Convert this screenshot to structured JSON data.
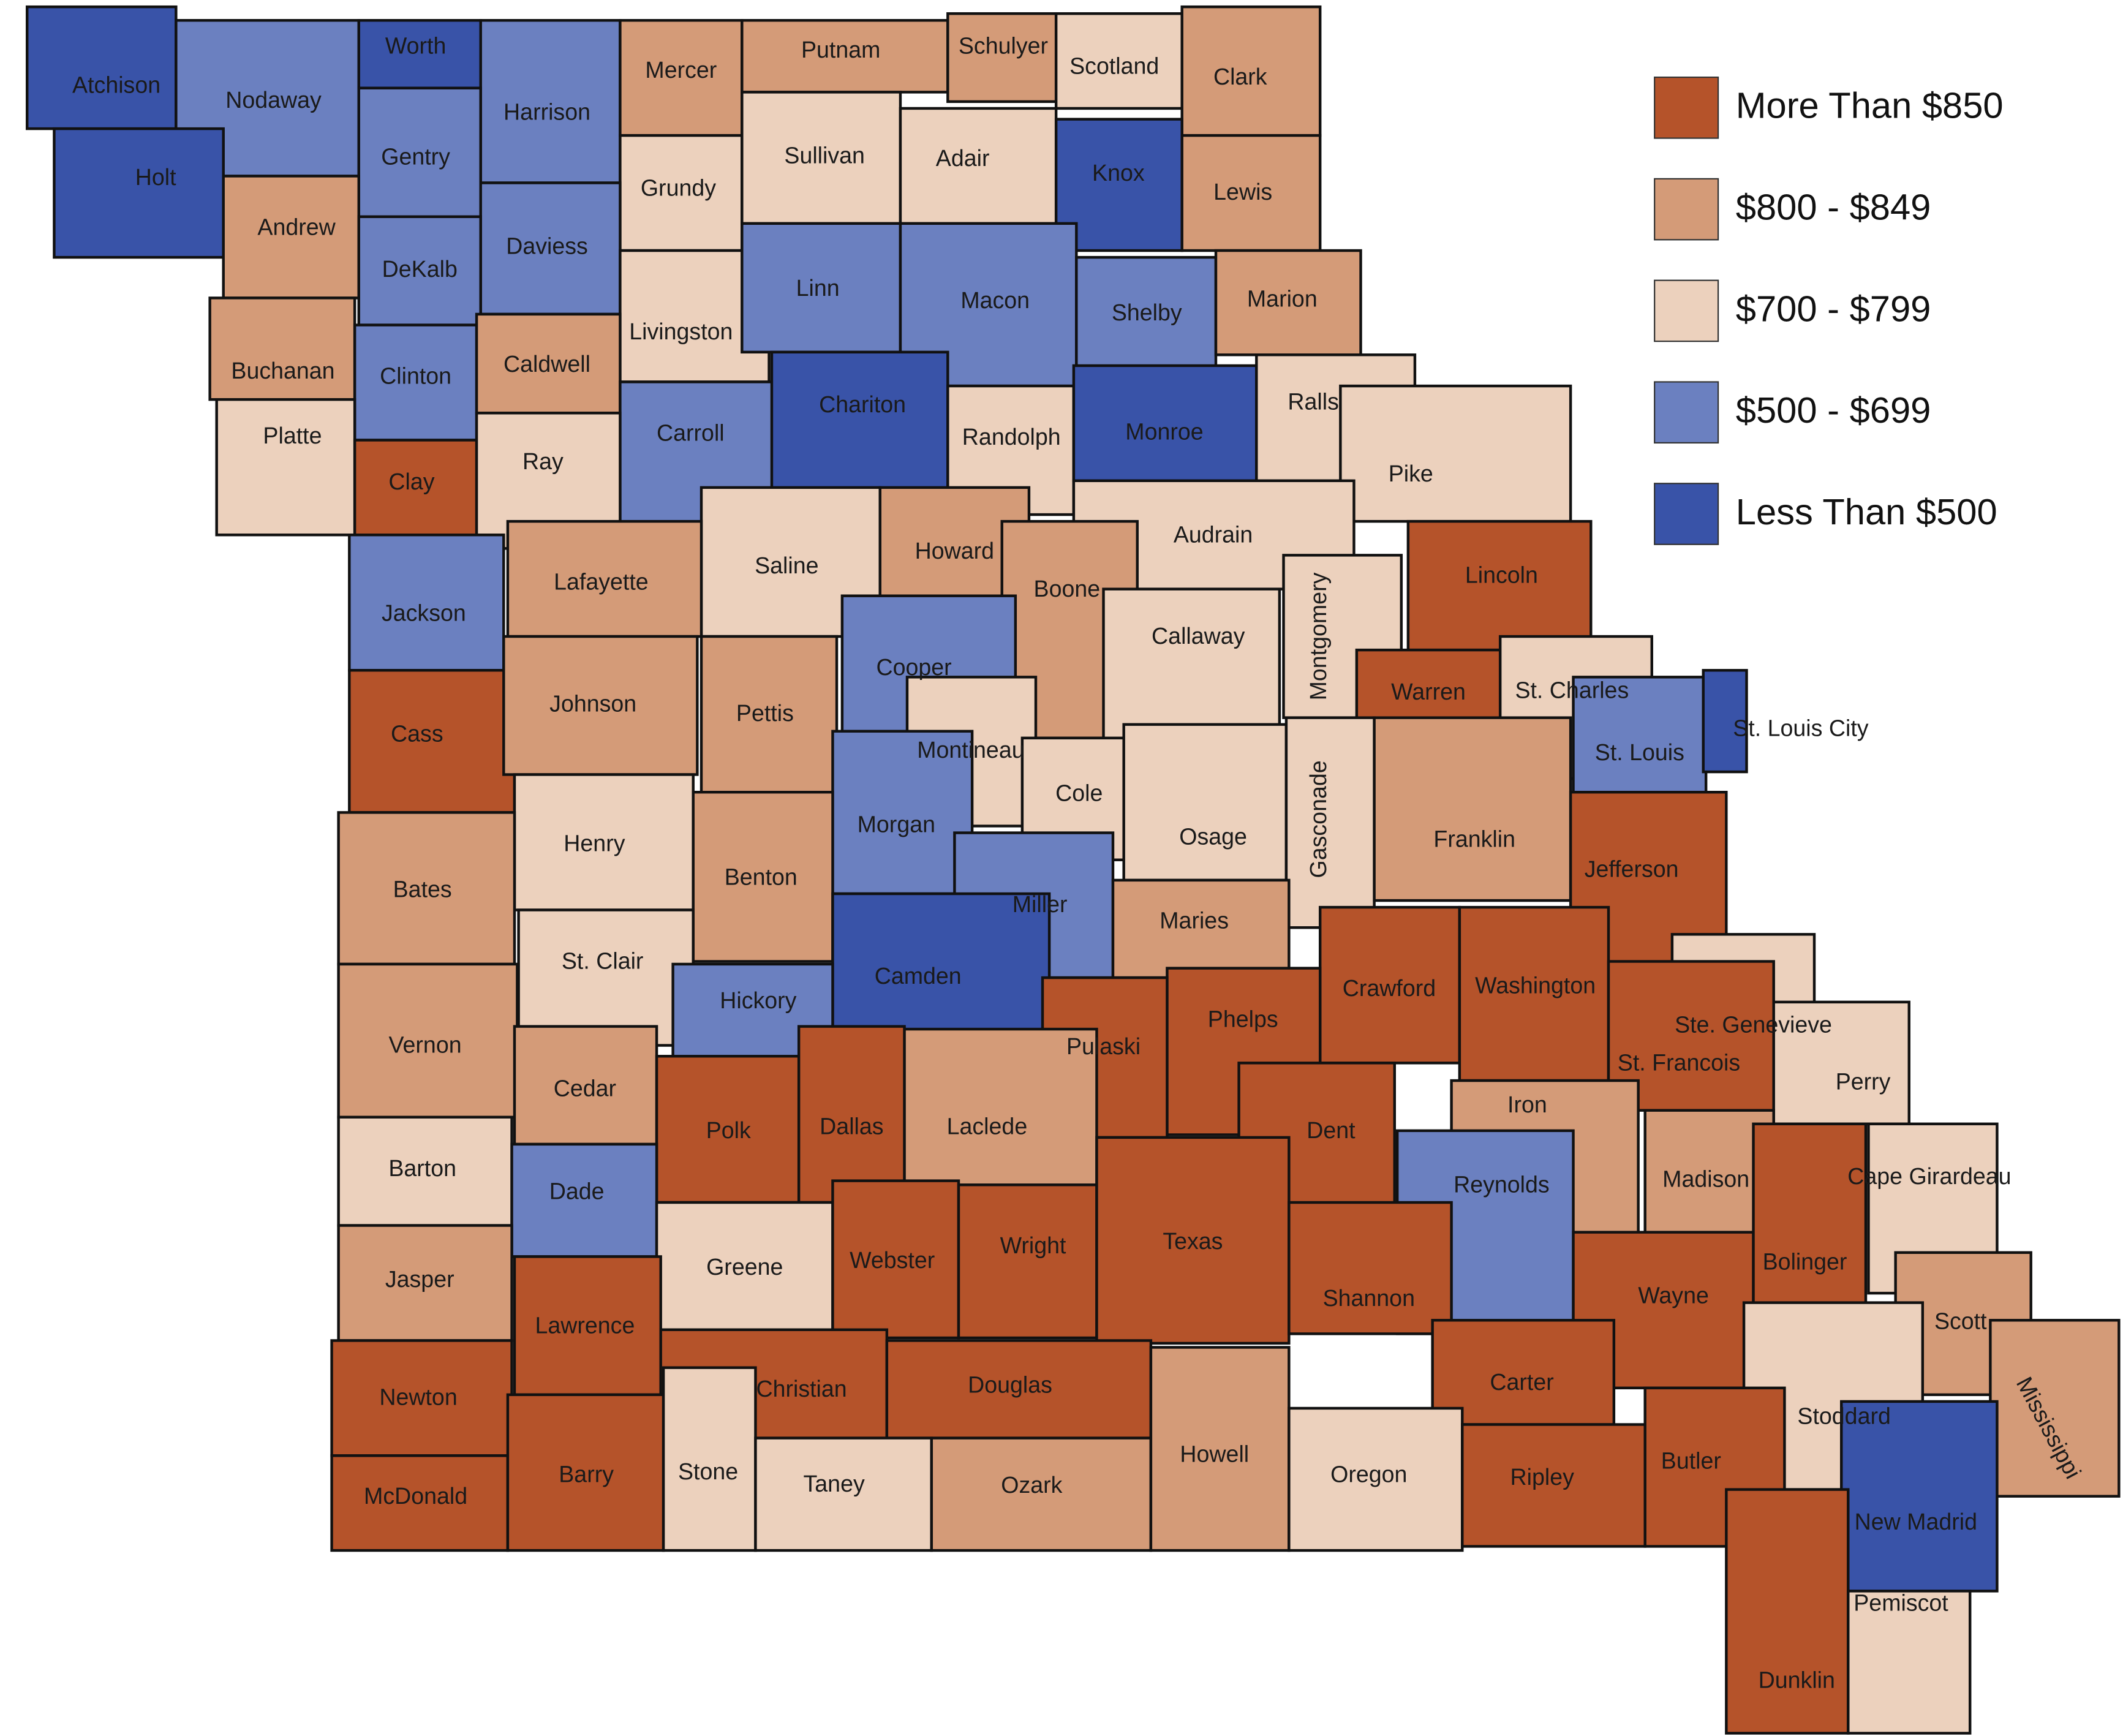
{
  "map": {
    "legend": [
      {
        "label": "More Than $850",
        "color": "#b5532a"
      },
      {
        "label": "$800 - $849",
        "color": "#d49b78"
      },
      {
        "label": "$700 - $799",
        "color": "#ecd1bd"
      },
      {
        "label": "$500 - $699",
        "color": "#6b80c0"
      },
      {
        "label": "Less Than $500",
        "color": "#3953a8"
      }
    ],
    "counties": [
      {
        "name": "Atchison",
        "range": "Less Than $500"
      },
      {
        "name": "Nodaway",
        "range": "$500 - $699"
      },
      {
        "name": "Worth",
        "range": "Less Than $500"
      },
      {
        "name": "Harrison",
        "range": "$500 - $699"
      },
      {
        "name": "Mercer",
        "range": "$800 - $849"
      },
      {
        "name": "Putnam",
        "range": "$800 - $849"
      },
      {
        "name": "Schulyer",
        "range": "$800 - $849"
      },
      {
        "name": "Scotland",
        "range": "$700 - $799"
      },
      {
        "name": "Clark",
        "range": "$800 - $849"
      },
      {
        "name": "Holt",
        "range": "Less Than $500"
      },
      {
        "name": "Gentry",
        "range": "$500 - $699"
      },
      {
        "name": "Grundy",
        "range": "$700 - $799"
      },
      {
        "name": "Sullivan",
        "range": "$700 - $799"
      },
      {
        "name": "Adair",
        "range": "$700 - $799"
      },
      {
        "name": "Knox",
        "range": "Less Than $500"
      },
      {
        "name": "Lewis",
        "range": "$800 - $849"
      },
      {
        "name": "Andrew",
        "range": "$800 - $849"
      },
      {
        "name": "Daviess",
        "range": "$500 - $699"
      },
      {
        "name": "DeKalb",
        "range": "$500 - $699"
      },
      {
        "name": "Livingston",
        "range": "$700 - $799"
      },
      {
        "name": "Linn",
        "range": "$500 - $699"
      },
      {
        "name": "Macon",
        "range": "$500 - $699"
      },
      {
        "name": "Shelby",
        "range": "$500 - $699"
      },
      {
        "name": "Marion",
        "range": "$800 - $849"
      },
      {
        "name": "Buchanan",
        "range": "$800 - $849"
      },
      {
        "name": "Clinton",
        "range": "$500 - $699"
      },
      {
        "name": "Caldwell",
        "range": "$800 - $849"
      },
      {
        "name": "Carroll",
        "range": "$500 - $699"
      },
      {
        "name": "Chariton",
        "range": "Less Than $500"
      },
      {
        "name": "Randolph",
        "range": "$700 - $799"
      },
      {
        "name": "Monroe",
        "range": "Less Than $500"
      },
      {
        "name": "Ralls",
        "range": "$700 - $799"
      },
      {
        "name": "Platte",
        "range": "$700 - $799"
      },
      {
        "name": "Clay",
        "range": "More Than $850"
      },
      {
        "name": "Ray",
        "range": "$700 - $799"
      },
      {
        "name": "Pike",
        "range": "$700 - $799"
      },
      {
        "name": "Saline",
        "range": "$700 - $799"
      },
      {
        "name": "Howard",
        "range": "$800 - $849"
      },
      {
        "name": "Audrain",
        "range": "$700 - $799"
      },
      {
        "name": "Lafayette",
        "range": "$800 - $849"
      },
      {
        "name": "Boone",
        "range": "$800 - $849"
      },
      {
        "name": "Callaway",
        "range": "$700 - $799"
      },
      {
        "name": "Montgomery",
        "range": "$700 - $799"
      },
      {
        "name": "Lincoln",
        "range": "More Than $850"
      },
      {
        "name": "Jackson",
        "range": "$500 - $699"
      },
      {
        "name": "Cooper",
        "range": "$500 - $699"
      },
      {
        "name": "Warren",
        "range": "More Than $850"
      },
      {
        "name": "St. Charles",
        "range": "$700 - $799"
      },
      {
        "name": "St. Louis",
        "range": "$500 - $699"
      },
      {
        "name": "St. Louis City",
        "range": "Less Than $500"
      },
      {
        "name": "Cass",
        "range": "More Than $850"
      },
      {
        "name": "Johnson",
        "range": "$800 - $849"
      },
      {
        "name": "Pettis",
        "range": "$800 - $849"
      },
      {
        "name": "Montineau",
        "range": "$700 - $799"
      },
      {
        "name": "Cole",
        "range": "$700 - $799"
      },
      {
        "name": "Osage",
        "range": "$700 - $799"
      },
      {
        "name": "Gasconade",
        "range": "$700 - $799"
      },
      {
        "name": "Franklin",
        "range": "$800 - $849"
      },
      {
        "name": "Jefferson",
        "range": "More Than $850"
      },
      {
        "name": "Morgan",
        "range": "$500 - $699"
      },
      {
        "name": "Henry",
        "range": "$700 - $799"
      },
      {
        "name": "Bates",
        "range": "$800 - $849"
      },
      {
        "name": "Benton",
        "range": "$800 - $849"
      },
      {
        "name": "Miller",
        "range": "$500 - $699"
      },
      {
        "name": "Maries",
        "range": "$800 - $849"
      },
      {
        "name": "St. Clair",
        "range": "$700 - $799"
      },
      {
        "name": "Camden",
        "range": "Less Than $500"
      },
      {
        "name": "Hickory",
        "range": "$500 - $699"
      },
      {
        "name": "Crawford",
        "range": "More Than $850"
      },
      {
        "name": "Washington",
        "range": "More Than $850"
      },
      {
        "name": "Phelps",
        "range": "More Than $850"
      },
      {
        "name": "Pulaski",
        "range": "More Than $850"
      },
      {
        "name": "Vernon",
        "range": "$800 - $849"
      },
      {
        "name": "Ste. Genevieve",
        "range": "$700 - $799"
      },
      {
        "name": "St. Francois",
        "range": "More Than $850"
      },
      {
        "name": "Perry",
        "range": "$700 - $799"
      },
      {
        "name": "Cedar",
        "range": "$800 - $849"
      },
      {
        "name": "Polk",
        "range": "More Than $850"
      },
      {
        "name": "Dallas",
        "range": "More Than $850"
      },
      {
        "name": "Laclede",
        "range": "$800 - $849"
      },
      {
        "name": "Dent",
        "range": "More Than $850"
      },
      {
        "name": "Iron",
        "range": "$800 - $849"
      },
      {
        "name": "Barton",
        "range": "$700 - $799"
      },
      {
        "name": "Dade",
        "range": "$500 - $699"
      },
      {
        "name": "Reynolds",
        "range": "$500 - $699"
      },
      {
        "name": "Madison",
        "range": "$800 - $849"
      },
      {
        "name": "Cape Girardeau",
        "range": "$700 - $799"
      },
      {
        "name": "Greene",
        "range": "$700 - $799"
      },
      {
        "name": "Webster",
        "range": "More Than $850"
      },
      {
        "name": "Wright",
        "range": "More Than $850"
      },
      {
        "name": "Texas",
        "range": "More Than $850"
      },
      {
        "name": "Shannon",
        "range": "More Than $850"
      },
      {
        "name": "Wayne",
        "range": "More Than $850"
      },
      {
        "name": "Bolinger",
        "range": "More Than $850"
      },
      {
        "name": "Jasper",
        "range": "$800 - $849"
      },
      {
        "name": "Lawrence",
        "range": "More Than $850"
      },
      {
        "name": "Scott",
        "range": "$800 - $849"
      },
      {
        "name": "Christian",
        "range": "More Than $850"
      },
      {
        "name": "Douglas",
        "range": "More Than $850"
      },
      {
        "name": "Carter",
        "range": "More Than $850"
      },
      {
        "name": "Newton",
        "range": "More Than $850"
      },
      {
        "name": "Stoddard",
        "range": "$700 - $799"
      },
      {
        "name": "Mississippi",
        "range": "$800 - $849"
      },
      {
        "name": "McDonald",
        "range": "More Than $850"
      },
      {
        "name": "Barry",
        "range": "More Than $850"
      },
      {
        "name": "Stone",
        "range": "$700 - $799"
      },
      {
        "name": "Taney",
        "range": "$700 - $799"
      },
      {
        "name": "Ozark",
        "range": "$800 - $849"
      },
      {
        "name": "Howell",
        "range": "$800 - $849"
      },
      {
        "name": "Oregon",
        "range": "$700 - $799"
      },
      {
        "name": "Ripley",
        "range": "More Than $850"
      },
      {
        "name": "Butler",
        "range": "More Than $850"
      },
      {
        "name": "New Madrid",
        "range": "Less Than $500"
      },
      {
        "name": "Dunklin",
        "range": "More Than $850"
      },
      {
        "name": "Pemiscot",
        "range": "$700 - $799"
      }
    ]
  }
}
